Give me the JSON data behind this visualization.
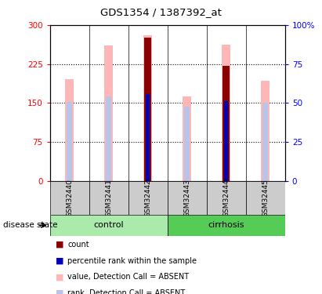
{
  "title": "GDS1354 / 1387392_at",
  "samples": [
    "GSM32440",
    "GSM32441",
    "GSM32442",
    "GSM32443",
    "GSM32444",
    "GSM32445"
  ],
  "ylim_left": [
    0,
    300
  ],
  "ylim_right": [
    0,
    100
  ],
  "yticks_left": [
    0,
    75,
    150,
    225,
    300
  ],
  "yticks_right": [
    0,
    25,
    50,
    75,
    100
  ],
  "pink_bar_heights": [
    195,
    260,
    280,
    162,
    262,
    193
  ],
  "pink_bar_color": "#ffb6b6",
  "rank_bar_heights": [
    152,
    162,
    168,
    143,
    153,
    150
  ],
  "rank_bar_color": "#b8c4e8",
  "dark_red_bar_heights": [
    0,
    0,
    275,
    0,
    221,
    0
  ],
  "dark_red_bar_color": "#8b0000",
  "blue_bar_heights": [
    0,
    0,
    167,
    0,
    153,
    0
  ],
  "blue_bar_color": "#0000bb",
  "pink_bar_width": 0.22,
  "rank_bar_width": 0.13,
  "dark_red_bar_width": 0.18,
  "blue_bar_width": 0.09,
  "control_color": "#aaeaaa",
  "cirrhosis_color": "#55cc55",
  "label_area_color": "#cccccc",
  "dotted_lines": [
    75,
    150,
    225
  ],
  "legend_items": [
    {
      "label": "count",
      "color": "#8b0000"
    },
    {
      "label": "percentile rank within the sample",
      "color": "#0000bb"
    },
    {
      "label": "value, Detection Call = ABSENT",
      "color": "#ffb6b6"
    },
    {
      "label": "rank, Detection Call = ABSENT",
      "color": "#b8c4e8"
    }
  ]
}
